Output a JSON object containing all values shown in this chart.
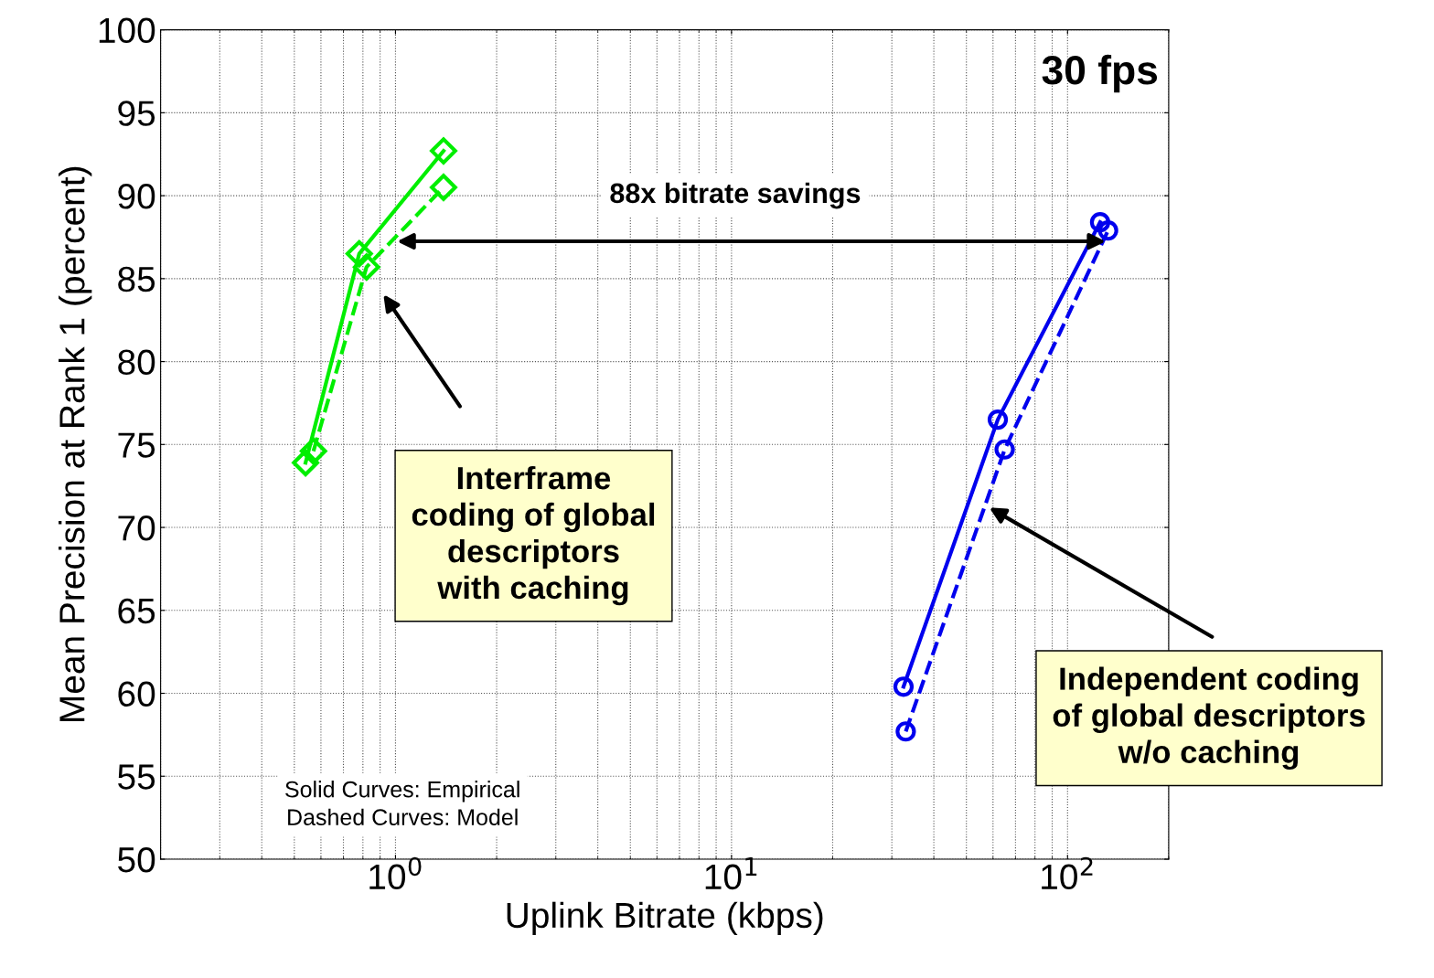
{
  "chart_data": {
    "type": "line",
    "xlabel": "Uplink Bitrate (kbps)",
    "ylabel": "Mean Precision at Rank 1 (percent)",
    "log": "x",
    "xlim": [
      0.2,
      200
    ],
    "xticks": [
      {
        "value": 1,
        "label": "10$^{0}$"
      },
      {
        "value": 10,
        "label": "10$^{1}$"
      },
      {
        "value": 100,
        "label": "10$^{2}$"
      }
    ],
    "ylim": [
      50,
      100
    ],
    "yticks": [
      50,
      55,
      60,
      65,
      70,
      75,
      80,
      85,
      90,
      95,
      100
    ],
    "grid": true,
    "series": [
      {
        "color": "#00ee00",
        "marker": "diamond",
        "line_style": "solid",
        "x": [
          0.54,
          0.78,
          1.39
        ],
        "values": [
          73.9,
          86.5,
          92.7
        ]
      },
      {
        "color": "#00ee00",
        "marker": "diamond",
        "line_style": "dashed",
        "x": [
          0.57,
          0.82,
          1.39
        ],
        "values": [
          74.6,
          85.7,
          90.5
        ]
      },
      {
        "color": "#0000ee",
        "marker": "circle",
        "line_style": "solid",
        "x": [
          32.5,
          62,
          125
        ],
        "values": [
          60.4,
          76.5,
          88.4
        ]
      },
      {
        "color": "#0000ee",
        "marker": "circle",
        "line_style": "dashed",
        "x": [
          33,
          65,
          132
        ],
        "values": [
          57.7,
          74.7,
          87.9
        ]
      }
    ],
    "annotations": [
      "30 fps",
      "88x bitrate savings",
      "Interframe\ncoding of global\ndescriptors\nwith caching",
      "Independent coding\nof global descriptors\nw/o caching",
      "Solid Curves: Empirical\nDashed Curves: Model"
    ]
  }
}
